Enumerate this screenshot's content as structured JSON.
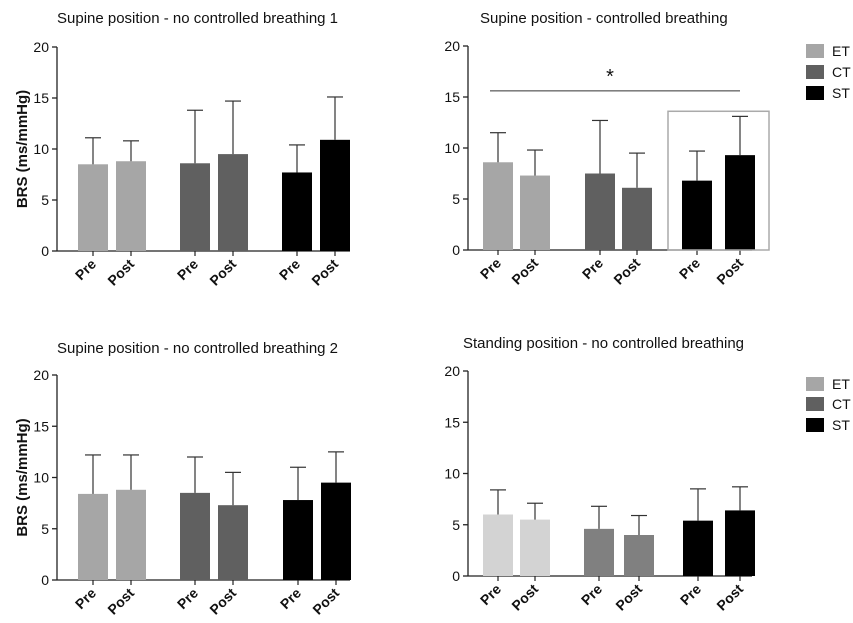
{
  "legend": {
    "items": [
      {
        "label": "ET",
        "color": "#a6a6a6"
      },
      {
        "label": "CT",
        "color": "#606060"
      },
      {
        "label": "ST",
        "color": "#000000"
      }
    ],
    "items_panel4": [
      {
        "label": "ET",
        "color": "#a6a6a6"
      },
      {
        "label": "CT",
        "color": "#606060"
      },
      {
        "label": "ST",
        "color": "#000000"
      }
    ]
  },
  "chart_data": [
    {
      "type": "bar",
      "title": "Supine position - no controlled breathing 1",
      "ylabel": "BRS (ms/mmHg)",
      "ylim": [
        0,
        20
      ],
      "yticks": [
        0,
        5,
        10,
        15,
        20
      ],
      "categories": [
        "Pre",
        "Post",
        "Pre",
        "Post",
        "Pre",
        "Post"
      ],
      "groups": [
        "ET",
        "ET",
        "CT",
        "CT",
        "ST",
        "ST"
      ],
      "values": [
        8.5,
        8.8,
        8.6,
        9.5,
        7.7,
        10.9
      ],
      "errors": [
        2.6,
        2.0,
        5.2,
        5.2,
        2.7,
        4.2
      ],
      "colors": [
        "#a6a6a6",
        "#a6a6a6",
        "#606060",
        "#606060",
        "#000000",
        "#000000"
      ]
    },
    {
      "type": "bar",
      "title": "Supine position - controlled breathing",
      "ylabel": "",
      "ylim": [
        0,
        20
      ],
      "yticks": [
        0,
        5,
        10,
        15,
        20
      ],
      "categories": [
        "Pre",
        "Post",
        "Pre",
        "Post",
        "Pre",
        "Post"
      ],
      "groups": [
        "ET",
        "ET",
        "CT",
        "CT",
        "ST",
        "ST"
      ],
      "values": [
        8.6,
        7.3,
        7.5,
        6.1,
        6.8,
        9.3
      ],
      "errors": [
        2.9,
        2.5,
        5.2,
        3.4,
        2.9,
        3.8
      ],
      "colors": [
        "#a6a6a6",
        "#a6a6a6",
        "#606060",
        "#606060",
        "#000000",
        "#000000"
      ],
      "annotation": "*",
      "significance_line": [
        15.6,
        15.6
      ],
      "highlight_box": [
        4,
        5
      ]
    },
    {
      "type": "bar",
      "title": "Supine position - no controlled breathing 2",
      "ylabel": "BRS (ms/mmHg)",
      "ylim": [
        0,
        20
      ],
      "yticks": [
        0,
        5,
        10,
        15,
        20
      ],
      "categories": [
        "Pre",
        "Post",
        "Pre",
        "Post",
        "Pre",
        "Post"
      ],
      "groups": [
        "ET",
        "ET",
        "CT",
        "CT",
        "ST",
        "ST"
      ],
      "values": [
        8.4,
        8.8,
        8.5,
        7.3,
        7.8,
        9.5
      ],
      "errors": [
        3.8,
        3.4,
        3.5,
        3.2,
        3.2,
        3.0
      ],
      "colors": [
        "#a6a6a6",
        "#a6a6a6",
        "#606060",
        "#606060",
        "#000000",
        "#000000"
      ]
    },
    {
      "type": "bar",
      "title": "Standing position - no controlled breathing",
      "ylabel": "",
      "ylim": [
        0,
        20
      ],
      "yticks": [
        0,
        5,
        10,
        15,
        20
      ],
      "categories": [
        "Pre",
        "Post",
        "Pre",
        "Post",
        "Pre",
        "Post"
      ],
      "groups": [
        "ET",
        "ET",
        "CT",
        "CT",
        "ST",
        "ST"
      ],
      "values": [
        6.0,
        5.5,
        4.6,
        4.0,
        5.4,
        6.4
      ],
      "errors": [
        2.4,
        1.6,
        2.2,
        1.9,
        3.1,
        2.3
      ],
      "colors": [
        "#d3d3d3",
        "#d3d3d3",
        "#808080",
        "#808080",
        "#000000",
        "#000000"
      ]
    }
  ]
}
